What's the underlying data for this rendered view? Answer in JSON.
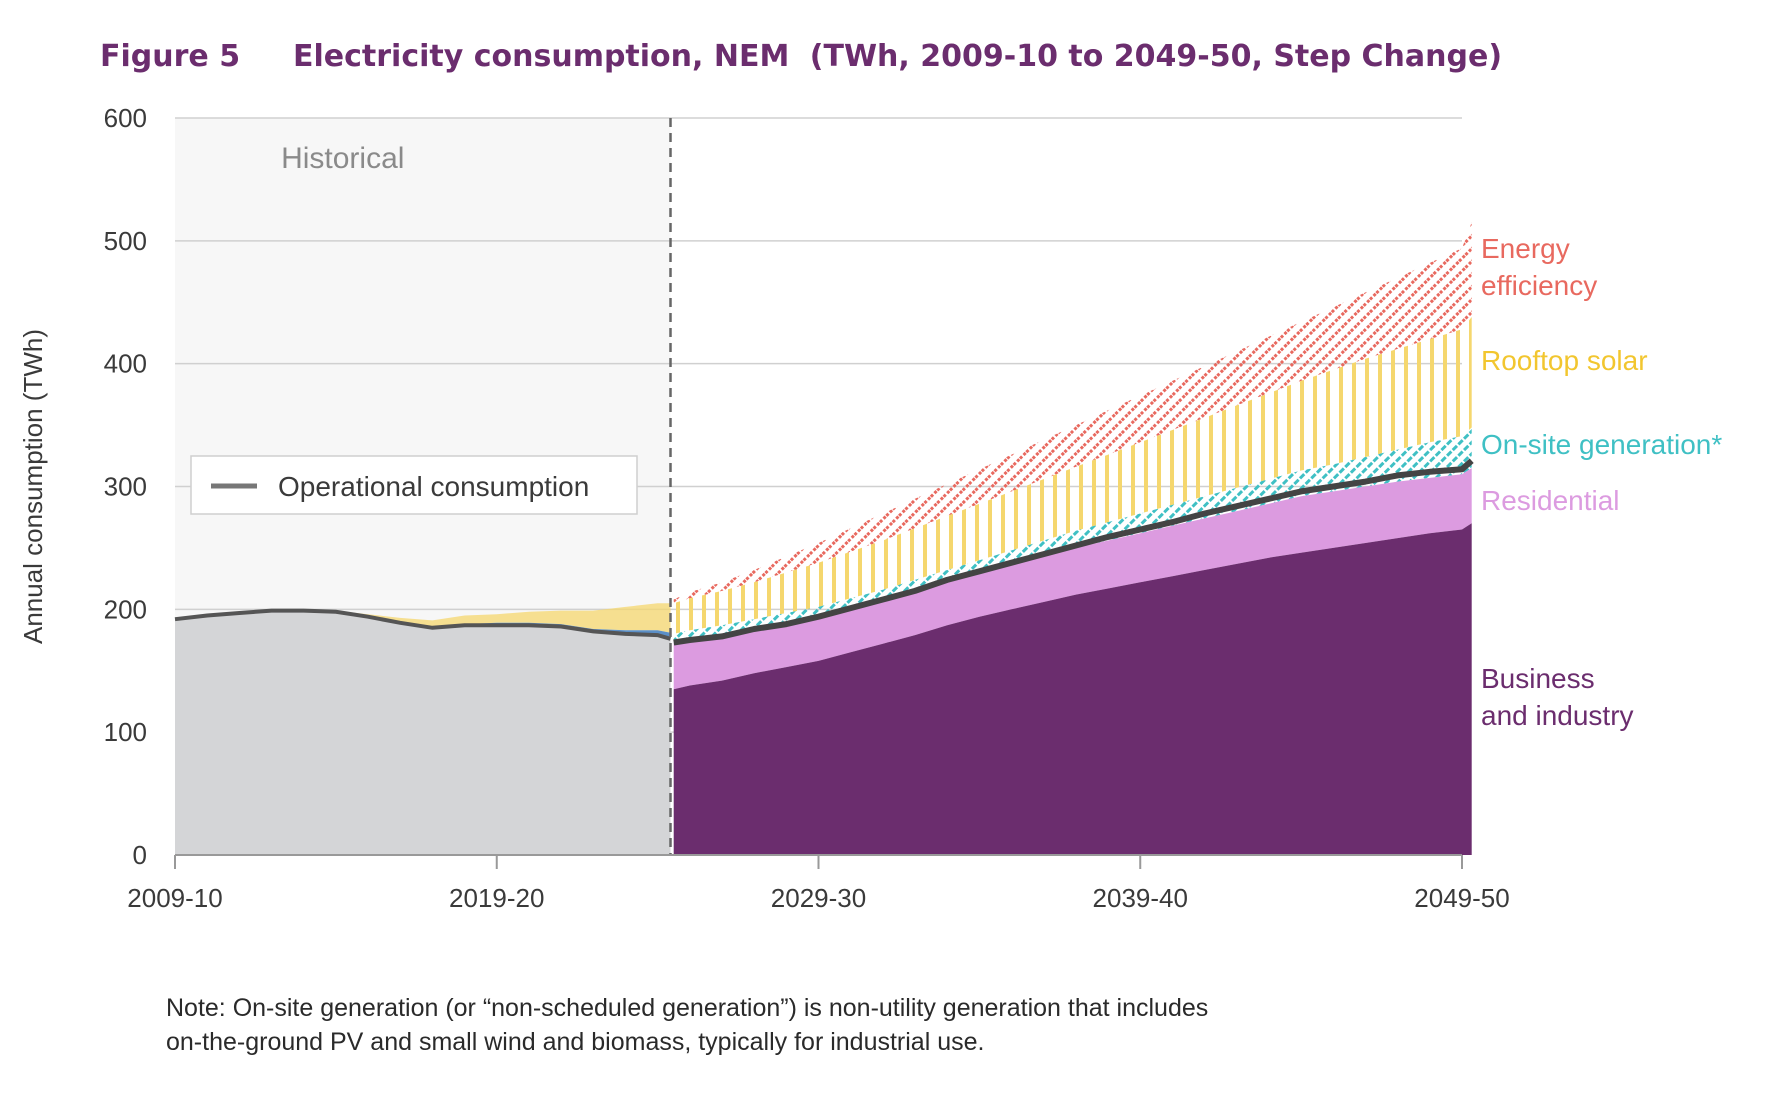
{
  "figure": {
    "number": "Figure 5",
    "title": "Electricity consumption, NEM",
    "subtitle": "(TWh, 2009-10 to 2049-50, Step Change)"
  },
  "note": {
    "line1": "Note: On-site generation (or “non-scheduled generation”) is non-utility generation that includes",
    "line2": "on-the-ground PV and small wind and biomass, typically for industrial use."
  },
  "chart_data": {
    "type": "area",
    "ylabel": "Annual consumption (TWh)",
    "ylim": [
      0,
      600
    ],
    "yticks": [
      0,
      100,
      200,
      300,
      400,
      500,
      600
    ],
    "xlim": [
      2009,
      2049
    ],
    "xticks": [
      {
        "value": 2009,
        "label": "2009-10"
      },
      {
        "value": 2019,
        "label": "2019-20"
      },
      {
        "value": 2029,
        "label": "2029-30"
      },
      {
        "value": 2039,
        "label": "2039-40"
      },
      {
        "value": 2049,
        "label": "2049-50"
      }
    ],
    "grid": true,
    "historical_label": "Historical",
    "historical_end": 2024.4,
    "legend": {
      "label": "Operational consumption",
      "position": "left-middle"
    },
    "colors": {
      "business": "#6b2d6e",
      "residential": "#dc9be0",
      "onsite": "#3fc0c4",
      "rooftop": "#f5d76e",
      "efficiency": "#e8695f",
      "historical_fill": "#d4d5d7",
      "historical_bg": "#f7f7f7",
      "operational": "#444444",
      "historical_blue": "#5b8fc7"
    },
    "historical": {
      "x": [
        2009,
        2010,
        2011,
        2012,
        2013,
        2014,
        2015,
        2016,
        2017,
        2018,
        2019,
        2020,
        2021,
        2022,
        2023,
        2024,
        2024.4
      ],
      "operational": [
        192,
        195,
        197,
        199,
        199,
        198,
        194,
        189,
        185,
        187,
        187,
        187,
        186,
        182,
        180,
        179,
        176
      ],
      "onsite_top": [
        192,
        195,
        197,
        199,
        199,
        198,
        194,
        189,
        186,
        188,
        189,
        189,
        188,
        184,
        183,
        183,
        181
      ],
      "rooftop_top": [
        192,
        195,
        197,
        199,
        200,
        199,
        196,
        193,
        191,
        195,
        196,
        198,
        199,
        199,
        202,
        205,
        205
      ]
    },
    "series": [
      {
        "name": "Business and industry",
        "values": [
          135,
          138,
          142,
          148,
          153,
          158,
          165,
          172,
          179,
          187,
          194,
          200,
          206,
          212,
          217,
          222,
          227,
          232,
          237,
          242,
          246,
          250,
          254,
          258,
          262,
          265,
          270
        ]
      },
      {
        "name": "Residential",
        "values": [
          173,
          175,
          178,
          183,
          188,
          193,
          200,
          207,
          214,
          222,
          229,
          236,
          243,
          250,
          256,
          262,
          268,
          274,
          280,
          286,
          292,
          296,
          300,
          304,
          307,
          310,
          315
        ]
      },
      {
        "name": "On-site generation*",
        "values": [
          180,
          183,
          187,
          192,
          197,
          202,
          209,
          216,
          224,
          232,
          240,
          248,
          256,
          264,
          271,
          278,
          285,
          292,
          299,
          306,
          313,
          318,
          324,
          330,
          336,
          341,
          348
        ]
      },
      {
        "name": "Rooftop solar",
        "values": [
          205,
          209,
          215,
          222,
          230,
          238,
          247,
          256,
          266,
          276,
          286,
          296,
          306,
          316,
          326,
          336,
          346,
          356,
          366,
          376,
          386,
          395,
          404,
          412,
          420,
          428,
          438
        ]
      },
      {
        "name": "Energy efficiency",
        "values": [
          208,
          214,
          222,
          232,
          243,
          254,
          266,
          278,
          290,
          302,
          314,
          326,
          338,
          350,
          362,
          374,
          386,
          398,
          410,
          422,
          434,
          446,
          458,
          470,
          482,
          494,
          515
        ]
      }
    ],
    "projection_x": [
      2024.5,
      2025,
      2026,
      2027,
      2028,
      2029,
      2030,
      2031,
      2032,
      2033,
      2034,
      2035,
      2036,
      2037,
      2038,
      2039,
      2040,
      2041,
      2042,
      2043,
      2044,
      2045,
      2046,
      2047,
      2048,
      2049,
      2049.3
    ],
    "operational_projection": [
      173,
      175,
      178,
      184,
      188,
      194,
      201,
      208,
      215,
      224,
      231,
      238,
      245,
      252,
      259,
      265,
      271,
      278,
      284,
      290,
      296,
      300,
      304,
      309,
      312,
      314,
      321
    ],
    "annotations": [
      {
        "lines": [
          "Energy",
          "efficiency"
        ],
        "color": "#e8695f"
      },
      {
        "lines": [
          "Rooftop solar"
        ],
        "color": "#f2c62f"
      },
      {
        "lines": [
          "On-site generation*"
        ],
        "color": "#3fc0c4"
      },
      {
        "lines": [
          "Residential"
        ],
        "color": "#dc9be0"
      },
      {
        "lines": [
          "Business",
          "and industry"
        ],
        "color": "#6b2d6e"
      }
    ]
  }
}
